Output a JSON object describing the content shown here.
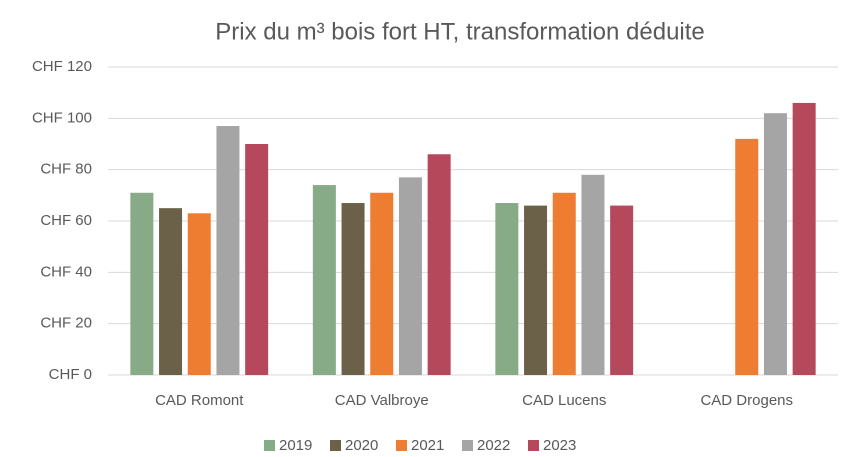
{
  "chart_data": {
    "type": "bar",
    "title": "Prix du m³ bois fort HT, transformation déduite",
    "categories": [
      "CAD Romont",
      "CAD Valbroye",
      "CAD Lucens",
      "CAD Drogens"
    ],
    "series": [
      {
        "name": "2019",
        "color": "#87aa87",
        "values": [
          71,
          74,
          67,
          null
        ]
      },
      {
        "name": "2020",
        "color": "#6b6149",
        "values": [
          65,
          67,
          66,
          null
        ]
      },
      {
        "name": "2021",
        "color": "#ee7d31",
        "values": [
          63,
          71,
          71,
          92
        ]
      },
      {
        "name": "2022",
        "color": "#a5a5a5",
        "values": [
          97,
          77,
          78,
          102
        ]
      },
      {
        "name": "2023",
        "color": "#b5485b",
        "values": [
          90,
          86,
          66,
          106
        ]
      }
    ],
    "ylim": [
      0,
      120
    ],
    "yticks": [
      {
        "value": 0,
        "label": "CHF 0"
      },
      {
        "value": 20,
        "label": "CHF 20"
      },
      {
        "value": 40,
        "label": "CHF 40"
      },
      {
        "value": 60,
        "label": "CHF 60"
      },
      {
        "value": 80,
        "label": "CHF 80"
      },
      {
        "value": 100,
        "label": "CHF 100"
      },
      {
        "value": 120,
        "label": "CHF 120"
      }
    ],
    "grid": true,
    "legend": "bottom"
  }
}
